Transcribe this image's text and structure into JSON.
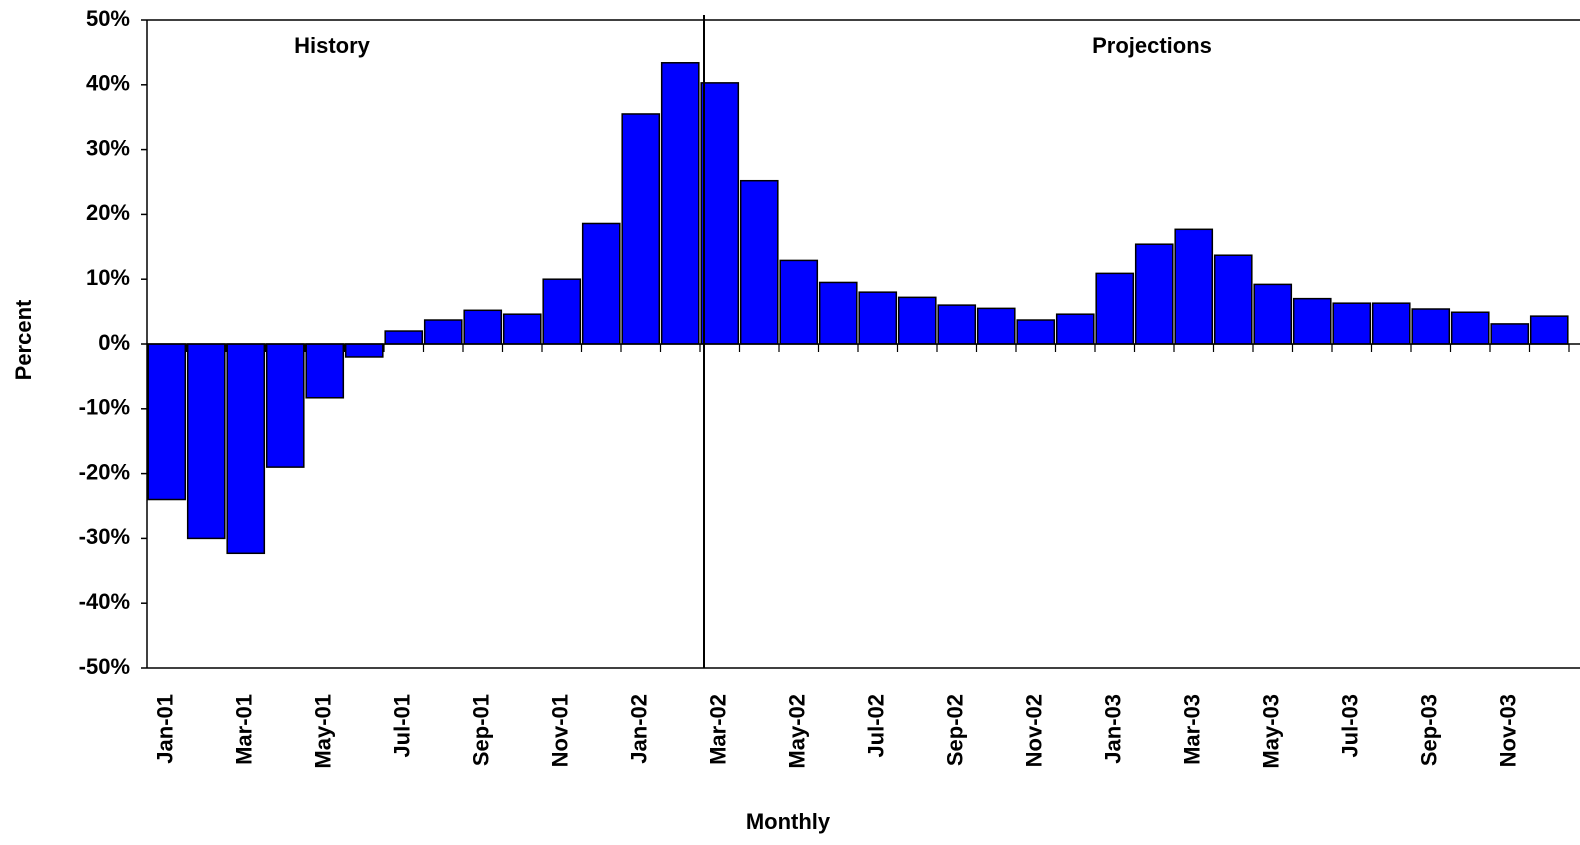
{
  "chart_data": {
    "type": "bar",
    "x_label": "Monthly",
    "y_label": "Percent",
    "annotations": [
      "History",
      "Projections"
    ],
    "categories": [
      "Jan-01",
      null,
      "Mar-01",
      null,
      "May-01",
      null,
      "Jul-01",
      null,
      "Sep-01",
      null,
      "Nov-01",
      null,
      "Jan-02",
      null,
      "Mar-02",
      null,
      "May-02",
      null,
      "Jul-02",
      null,
      "Sep-02",
      null,
      "Nov-02",
      null,
      "Jan-03",
      null,
      "Mar-03",
      null,
      "May-03",
      null,
      "Jul-03",
      null,
      "Sep-03",
      null,
      "Nov-03",
      null
    ],
    "values": [
      -24,
      -30,
      -32.3,
      -19,
      -8.3,
      -2,
      2,
      3.7,
      5.2,
      4.6,
      10,
      18.6,
      35.5,
      43.4,
      40.3,
      25.2,
      12.9,
      9.5,
      8,
      7.2,
      6,
      5.5,
      3.7,
      4.6,
      10.9,
      15.4,
      17.7,
      13.7,
      9.2,
      7,
      6.3,
      6.3,
      5.4,
      4.9,
      3.1,
      4.3
    ],
    "color": "#0000ff",
    "ylim": [
      -50,
      50
    ],
    "yticks": [
      {
        "value": -50,
        "label": "-50%"
      },
      {
        "value": -40,
        "label": "-40%"
      },
      {
        "value": -30,
        "label": "-30%"
      },
      {
        "value": -20,
        "label": "-20%"
      },
      {
        "value": -10,
        "label": "-10%"
      },
      {
        "value": 0,
        "label": "0%"
      },
      {
        "value": 10,
        "label": "10%"
      },
      {
        "value": 20,
        "label": "20%"
      },
      {
        "value": 30,
        "label": "30%"
      },
      {
        "value": 40,
        "label": "40%"
      },
      {
        "value": 50,
        "label": "50%"
      }
    ],
    "grid": false
  }
}
